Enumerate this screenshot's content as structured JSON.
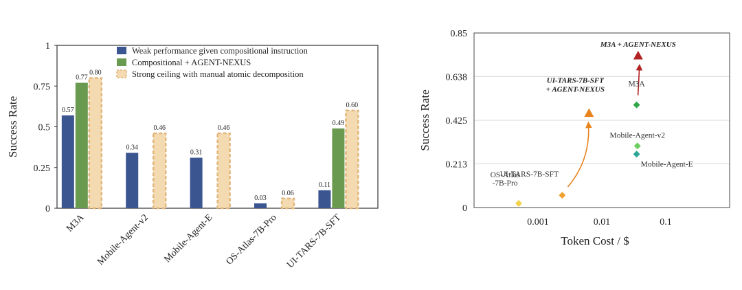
{
  "chart_data": [
    {
      "type": "bar",
      "ylabel": "Success Rate",
      "xlabel": "",
      "ylim": [
        0,
        1
      ],
      "yticks": [
        0,
        0.25,
        0.5,
        0.75,
        1
      ],
      "ytick_labels": [
        "0",
        "0.25",
        "0.5",
        "0.75",
        "1"
      ],
      "categories": [
        "M3A",
        "Mobile-Agent-v2",
        "Mobile-Agent-E",
        "OS-Atlas-7B-Pro",
        "UI-TARS-7B-SFT"
      ],
      "series": [
        {
          "name": "Weak performance given compositional instruction",
          "color": "#3b5591",
          "values": [
            0.57,
            0.34,
            0.31,
            0.03,
            0.11
          ],
          "labels": [
            "0.57",
            "0.34",
            "0.31",
            "0.03",
            "0.11"
          ]
        },
        {
          "name": "Compositional + AGENT-NEXUS",
          "color": "#6a9a4f",
          "values": [
            0.77,
            null,
            null,
            null,
            0.49
          ],
          "labels": [
            "0.77",
            "",
            "",
            "",
            "0.49"
          ]
        },
        {
          "name": "Strong ceiling with manual atomic decomposition",
          "color": "#f4dab0",
          "values": [
            0.8,
            0.46,
            0.46,
            0.06,
            0.6
          ],
          "labels": [
            "0.80",
            "0.46",
            "0.46",
            "0.06",
            "0.60"
          ]
        }
      ],
      "legend_position": "top-right"
    },
    {
      "type": "scatter",
      "xlabel": "Token Cost / $",
      "ylabel": "Success Rate",
      "xscale": "log",
      "xlim": [
        0.0001,
        1
      ],
      "ylim": [
        0,
        0.85
      ],
      "xticks": [
        0.001,
        0.01,
        0.1
      ],
      "xtick_labels": [
        "0.001",
        "0.01",
        "0.1"
      ],
      "yticks": [
        0,
        0.213,
        0.425,
        0.638,
        0.85
      ],
      "ytick_labels": [
        "0",
        "0.213",
        "0.425",
        "0.638",
        "0.85"
      ],
      "points": [
        {
          "label": "OS-Atlas\n-7B-Pro",
          "x": 0.0005,
          "y": 0.02,
          "marker": "diamond",
          "color": "#f2d24b"
        },
        {
          "label": "UI-TARS-7B-SFT",
          "x": 0.0024,
          "y": 0.06,
          "marker": "diamond",
          "color": "#f0a030"
        },
        {
          "label": "UI-TARS-7B-SFT\n+ AGENT-NEXUS",
          "x": 0.0063,
          "y": 0.46,
          "marker": "triangle",
          "color": "#e8841e"
        },
        {
          "label": "Mobile-Agent-E",
          "x": 0.035,
          "y": 0.26,
          "marker": "diamond",
          "color": "#2ca597"
        },
        {
          "label": "Mobile-Agent-v2",
          "x": 0.036,
          "y": 0.3,
          "marker": "diamond",
          "color": "#6ccf5f"
        },
        {
          "label": "M3A",
          "x": 0.035,
          "y": 0.5,
          "marker": "diamond",
          "color": "#2ea84a"
        },
        {
          "label": "M3A + AGENT-NEXUS",
          "x": 0.037,
          "y": 0.74,
          "marker": "triangle",
          "color": "#b22222"
        }
      ],
      "annotations": [
        {
          "text": "UI-TARS-7B-SFT\n+ AGENT-NEXUS",
          "color": "#e8841e",
          "arrow_from": "UI-TARS-7B-SFT",
          "arrow_to": "UI-TARS-7B-SFT\n+ AGENT-NEXUS"
        },
        {
          "text": "M3A + AGENT-NEXUS",
          "color": "#b22222",
          "arrow_from": "M3A",
          "arrow_to": "M3A + AGENT-NEXUS"
        }
      ]
    }
  ]
}
